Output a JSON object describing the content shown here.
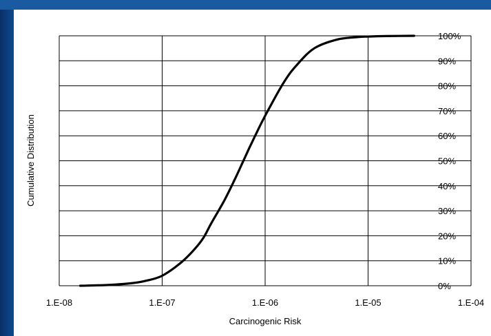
{
  "chart_data": {
    "type": "line",
    "title": "",
    "xlabel": "Carcinogenic Risk",
    "ylabel": "Cumulative Distribution",
    "x_scale": "log",
    "xlim": [
      1e-08,
      0.0001
    ],
    "ylim": [
      0,
      1
    ],
    "x_tick_labels": [
      "1.E-08",
      "1.E-07",
      "1.E-06",
      "1.E-05",
      "1.E-04"
    ],
    "x_tick_values": [
      1e-08,
      1e-07,
      1e-06,
      1e-05,
      0.0001
    ],
    "y_tick_labels": [
      "0%",
      "10%",
      "20%",
      "30%",
      "40%",
      "50%",
      "60%",
      "70%",
      "80%",
      "90%",
      "100%"
    ],
    "y_tick_values": [
      0,
      0.1,
      0.2,
      0.3,
      0.4,
      0.5,
      0.6,
      0.7,
      0.8,
      0.9,
      1.0
    ],
    "grid": true,
    "legend": "none",
    "series": [
      {
        "color": "#000000",
        "x": [
          1.6e-08,
          3e-08,
          5e-08,
          7e-08,
          1e-07,
          1.5e-07,
          2e-07,
          2.5e-07,
          3e-07,
          4e-07,
          5e-07,
          6e-07,
          7e-07,
          8e-07,
          1e-06,
          1.5e-06,
          2e-06,
          3e-06,
          5e-06,
          8e-06,
          1e-05,
          1.5e-05,
          2.8e-05
        ],
        "y": [
          0.0,
          0.003,
          0.01,
          0.02,
          0.04,
          0.09,
          0.14,
          0.19,
          0.25,
          0.34,
          0.42,
          0.49,
          0.55,
          0.6,
          0.68,
          0.81,
          0.88,
          0.95,
          0.985,
          0.995,
          0.997,
          0.999,
          1.0
        ]
      }
    ]
  }
}
